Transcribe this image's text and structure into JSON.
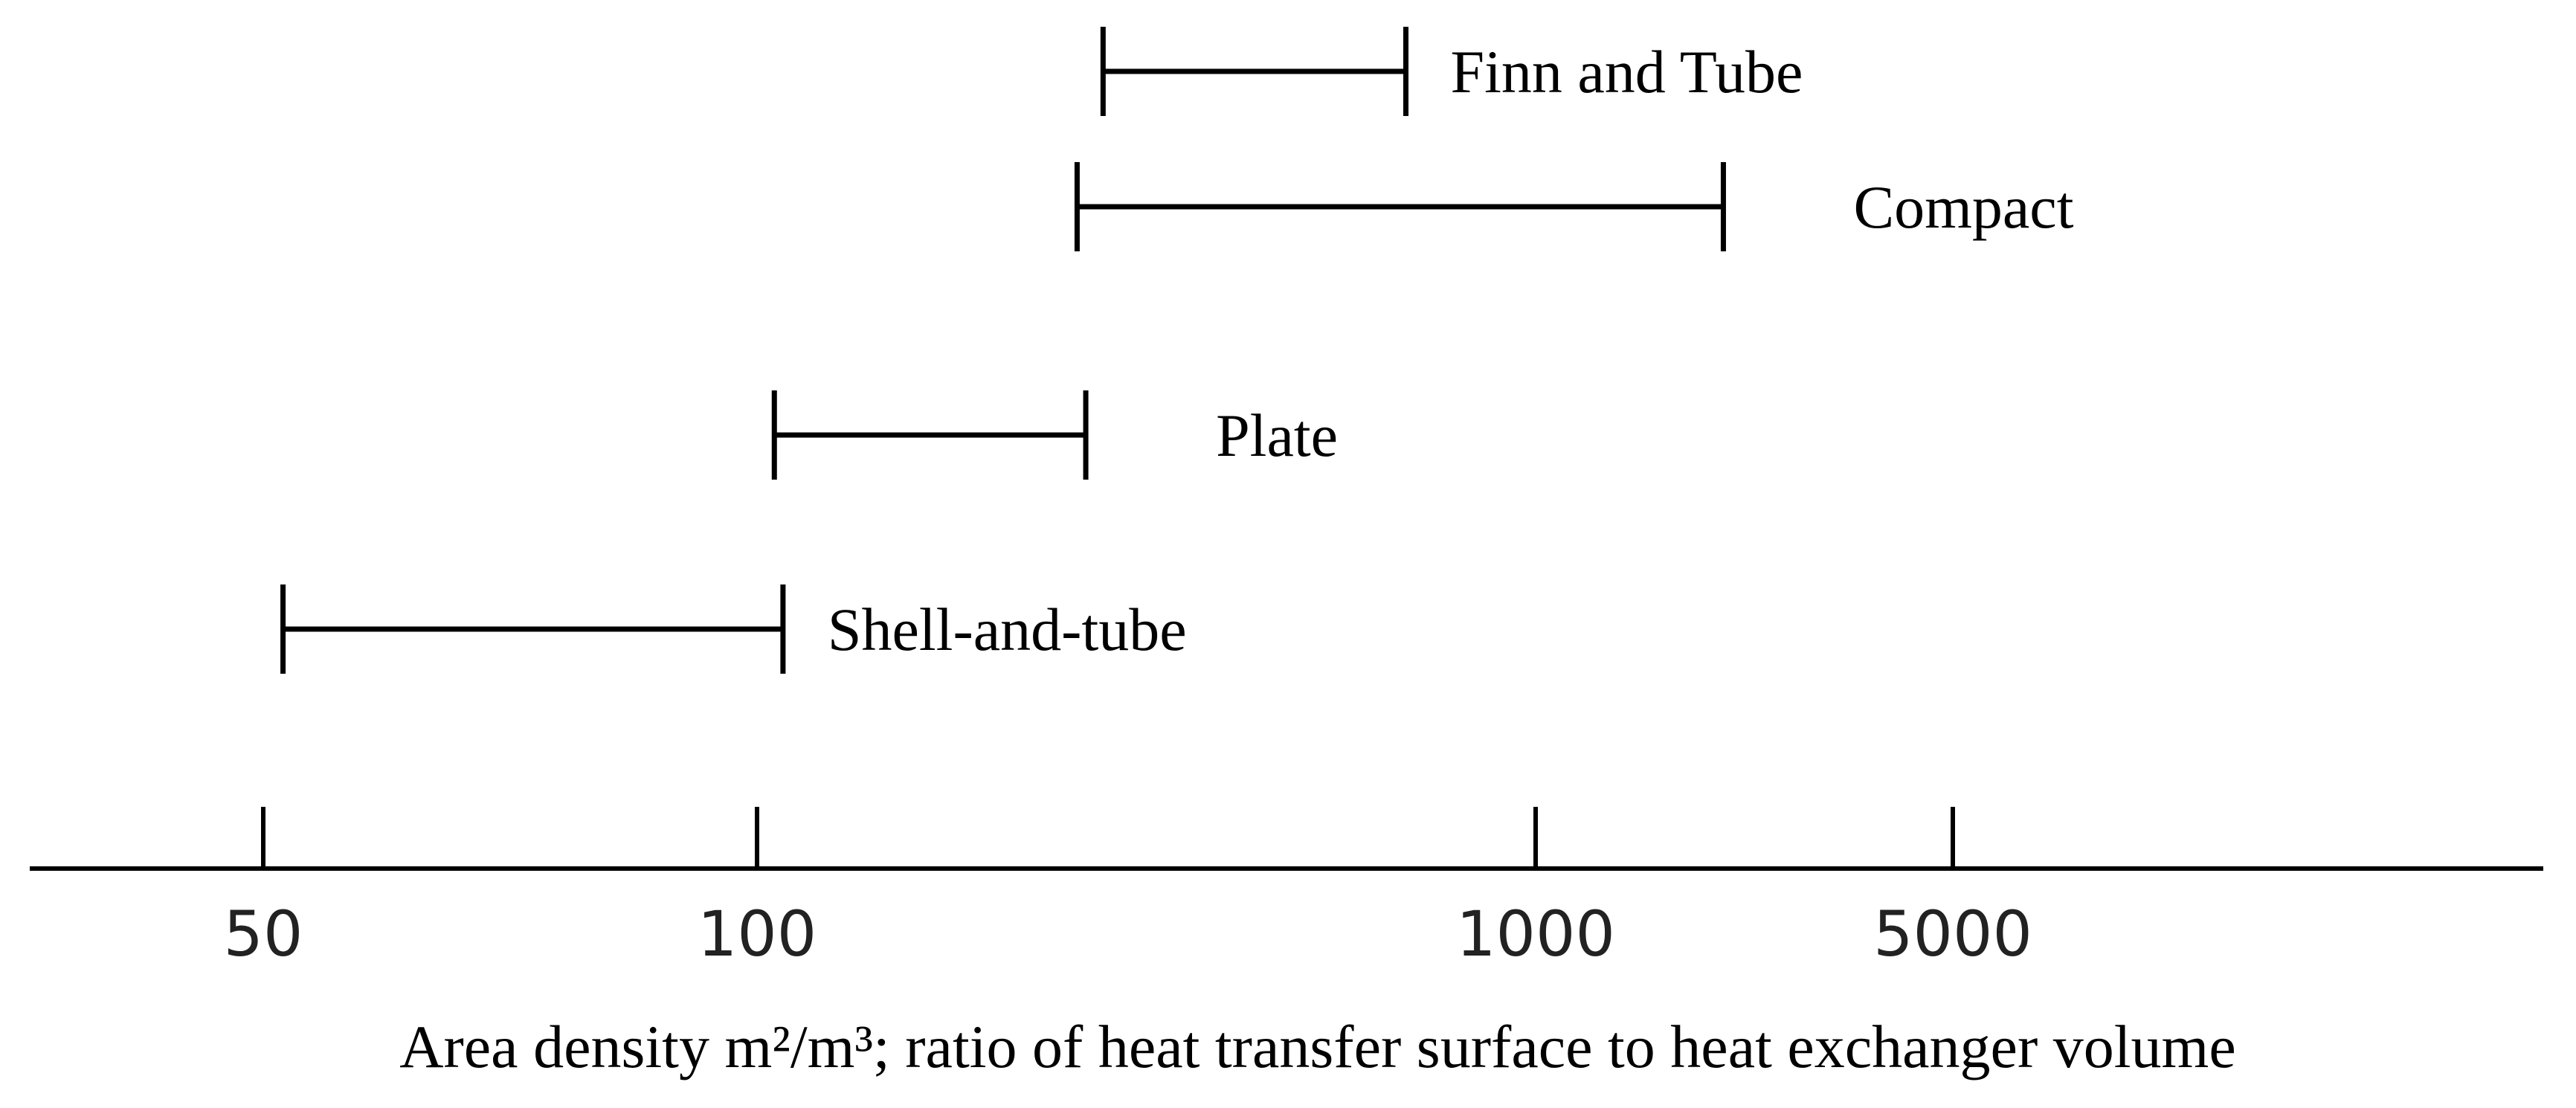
{
  "chart_data": {
    "type": "range",
    "title": "",
    "xlabel": "Area density m²/m³; ratio of heat transfer surface to heat exchanger volume",
    "xticks": [
      {
        "value": 50,
        "label": "50"
      },
      {
        "value": 100,
        "label": "100"
      },
      {
        "value": 1000,
        "label": "1000"
      },
      {
        "value": 5000,
        "label": "5000"
      }
    ],
    "series": [
      {
        "name": "Finn and Tube",
        "min": 500,
        "max": 850
      },
      {
        "name": "Compact",
        "min": 470,
        "max": 2800
      },
      {
        "name": "Plate",
        "min": 120,
        "max": 480
      },
      {
        "name": "Shell-and-tube",
        "min": 52,
        "max": 130
      }
    ]
  }
}
